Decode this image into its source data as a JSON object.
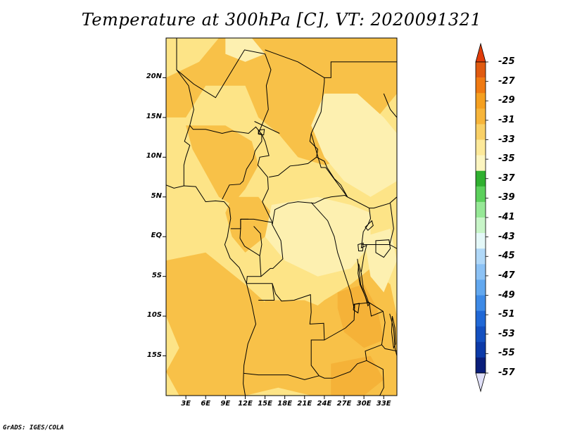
{
  "title": "Temperature at 300hPa [C], VT: 2020091321",
  "credit": "GrADS: IGES/COLA",
  "lat_ticks": [
    {
      "label": "20N",
      "lat": 20
    },
    {
      "label": "15N",
      "lat": 15
    },
    {
      "label": "10N",
      "lat": 10
    },
    {
      "label": "5N",
      "lat": 5
    },
    {
      "label": "EQ",
      "lat": 0
    },
    {
      "label": "5S",
      "lat": -5
    },
    {
      "label": "10S",
      "lat": -10
    },
    {
      "label": "15S",
      "lat": -15
    }
  ],
  "lon_ticks": [
    {
      "label": "3E",
      "lon": 3
    },
    {
      "label": "6E",
      "lon": 6
    },
    {
      "label": "9E",
      "lon": 9
    },
    {
      "label": "12E",
      "lon": 12
    },
    {
      "label": "15E",
      "lon": 15
    },
    {
      "label": "18E",
      "lon": 18
    },
    {
      "label": "21E",
      "lon": 21
    },
    {
      "label": "24E",
      "lon": 24
    },
    {
      "label": "27E",
      "lon": 27
    },
    {
      "label": "30E",
      "lon": 30
    },
    {
      "label": "33E",
      "lon": 33
    }
  ],
  "extent": {
    "lon_min": 0,
    "lon_max": 35,
    "lat_min": -20,
    "lat_max": 25
  },
  "colorbar": {
    "labels": [
      "-25",
      "-27",
      "-29",
      "-31",
      "-33",
      "-35",
      "-37",
      "-39",
      "-41",
      "-43",
      "-45",
      "-47",
      "-49",
      "-51",
      "-53",
      "-55",
      "-57"
    ],
    "colors_top_to_bottom": [
      "#e05a10",
      "#f07a12",
      "#f5a020",
      "#f7b53a",
      "#f9d066",
      "#fde99a",
      "#fcf5c0",
      "#30b030",
      "#5cd05c",
      "#96e896",
      "#c8f5c8",
      "#e4f8f8",
      "#b0d8f8",
      "#8cc2f5",
      "#62a8ef",
      "#3e8ae6",
      "#2068d6",
      "#1450c0",
      "#0c3aa8",
      "#0a1e7a"
    ],
    "top_arrow_color": "#e03c0a",
    "bottom_arrow_color": "#e0e0f8"
  },
  "field_colors": {
    "band_33_31": "#fde487",
    "band_31_29": "#f8c148",
    "band_29_27": "#f5b238",
    "band_35_33": "#fdf0b0"
  }
}
